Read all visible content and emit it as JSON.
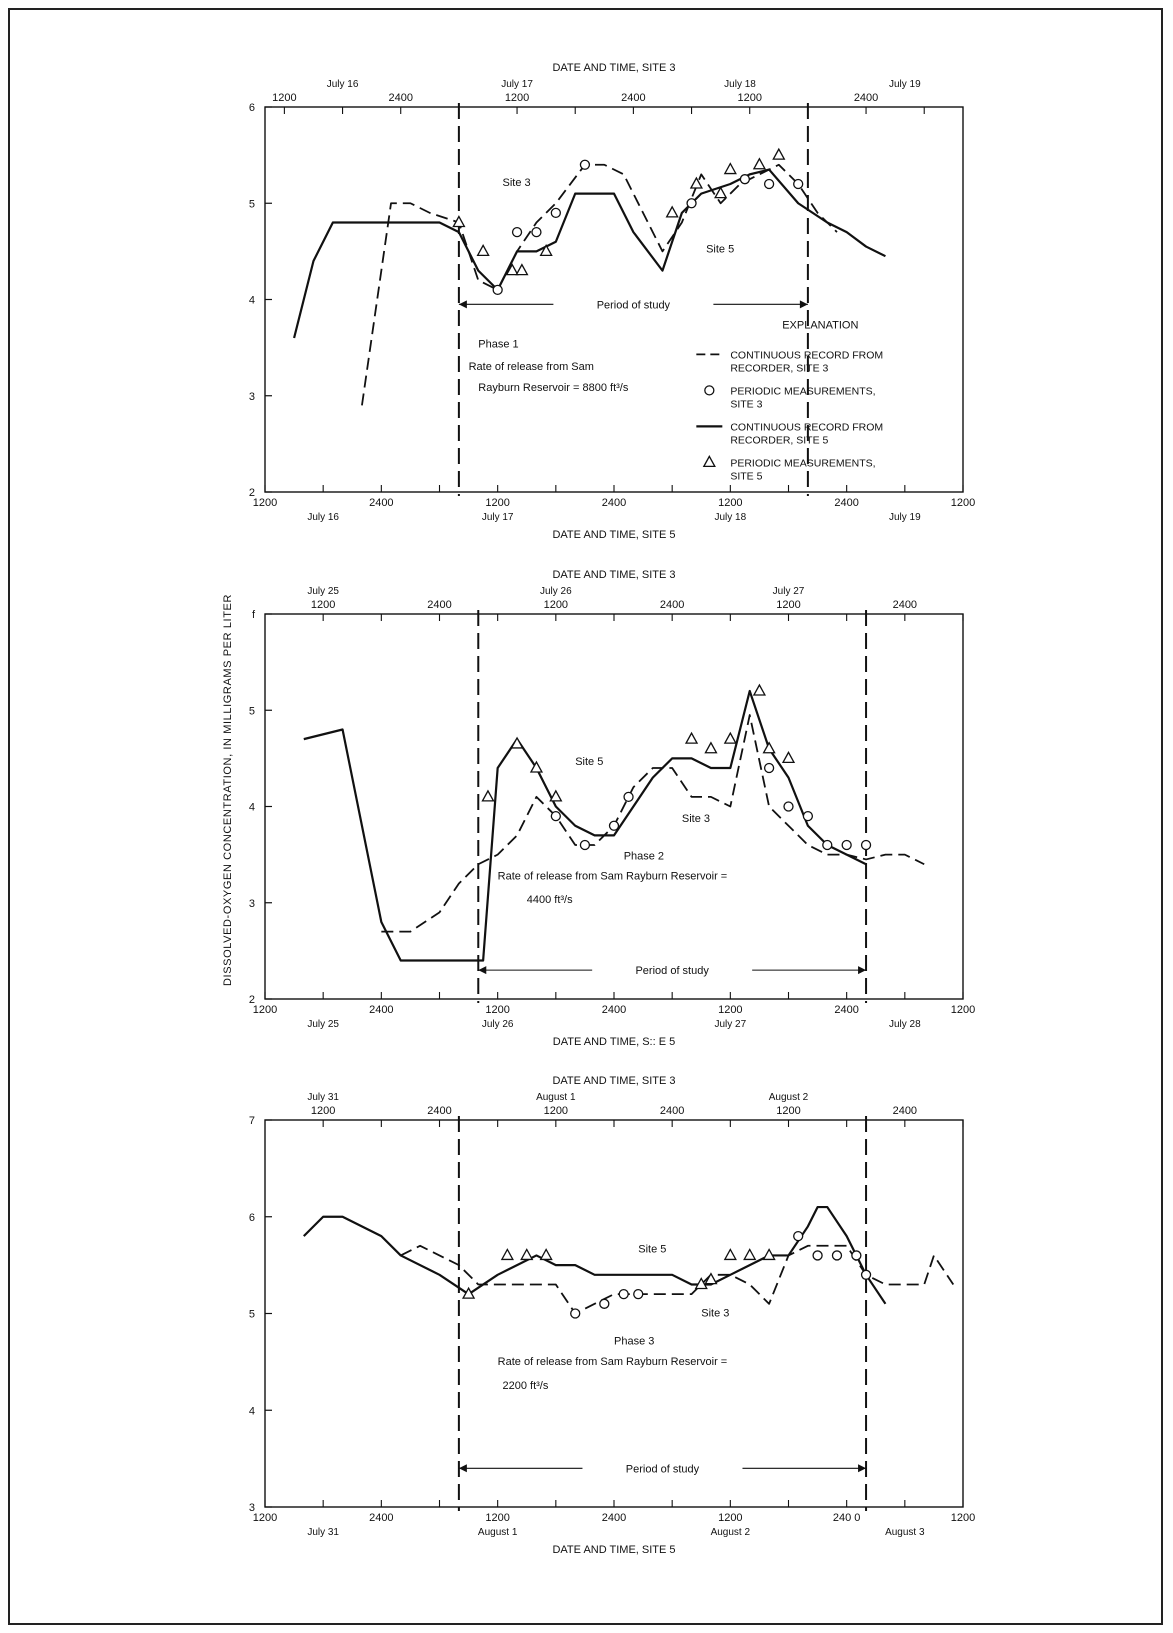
{
  "page": {
    "y_axis_label": "DISSOLVED-OXYGEN CONCENTRATION, IN MILLIGRAMS PER LITER"
  },
  "chart_data": [
    {
      "type": "line",
      "panel": "Phase 1",
      "top_axis_title": "DATE AND TIME, SITE 3",
      "bottom_axis_title": "DATE AND TIME, SITE 5",
      "ylim": [
        2,
        6
      ],
      "yticks": [
        2,
        3,
        4,
        5,
        6
      ],
      "xlim_hours": [
        0,
        72
      ],
      "top_offset_hours": 2,
      "top_ticks": [
        {
          "h": 0,
          "t": "1200"
        },
        {
          "h": 12,
          "t": "2400"
        },
        {
          "h": 24,
          "t": "1200"
        },
        {
          "h": 36,
          "t": "2400"
        },
        {
          "h": 48,
          "t": "1200"
        },
        {
          "h": 60,
          "t": "2400"
        }
      ],
      "top_dates": [
        {
          "h": 6,
          "t": "July 16"
        },
        {
          "h": 24,
          "t": "July 17"
        },
        {
          "h": 47,
          "t": "July 18"
        },
        {
          "h": 64,
          "t": "July 19"
        }
      ],
      "bottom_ticks": [
        {
          "h": 0,
          "t": "1200"
        },
        {
          "h": 12,
          "t": "2400"
        },
        {
          "h": 24,
          "t": "1200"
        },
        {
          "h": 36,
          "t": "2400"
        },
        {
          "h": 48,
          "t": "1200"
        },
        {
          "h": 60,
          "t": "2400"
        },
        {
          "h": 72,
          "t": "1200"
        }
      ],
      "bottom_dates": [
        {
          "h": 6,
          "t": "July 16"
        },
        {
          "h": 24,
          "t": "July 17"
        },
        {
          "h": 48,
          "t": "July 18"
        },
        {
          "h": 66,
          "t": "July 19"
        }
      ],
      "study_period": [
        20,
        56
      ],
      "period_label": "Period of study",
      "annotations": [
        {
          "h": 22,
          "v": 3.5,
          "t": "Phase 1",
          "anchor": "start"
        },
        {
          "h": 21,
          "v": 3.27,
          "t": "Rate of release from Sam",
          "anchor": "start"
        },
        {
          "h": 22,
          "v": 3.05,
          "t": "Rayburn Reservoir = 8800 ft³/s",
          "anchor": "start"
        },
        {
          "h": 24.5,
          "v": 5.18,
          "t": "Site 3",
          "anchor": "start"
        },
        {
          "h": 45.5,
          "v": 4.49,
          "t": "Site 5",
          "anchor": "start"
        }
      ],
      "legend": {
        "title": "EXPLANATION",
        "items": [
          {
            "kind": "dashed",
            "label": "CONTINUOUS RECORD FROM RECORDER, SITE 3"
          },
          {
            "kind": "circle",
            "label": "PERIODIC MEASUREMENTS, SITE 3"
          },
          {
            "kind": "solid",
            "label": "CONTINUOUS RECORD FROM RECORDER, SITE 5"
          },
          {
            "kind": "triangle",
            "label": "PERIODIC MEASUREMENTS, SITE 5"
          }
        ]
      },
      "series": [
        {
          "name": "CONTINUOUS RECORD FROM RECORDER, SITE 3",
          "style": "dashed",
          "x": [
            10,
            13,
            15,
            17,
            20,
            22,
            24,
            25,
            26,
            28,
            30,
            33,
            35,
            37,
            39,
            41,
            43,
            45,
            47,
            49,
            51,
            53,
            55,
            57,
            59
          ],
          "y": [
            2.9,
            5.0,
            5.0,
            4.9,
            4.8,
            4.2,
            4.1,
            4.3,
            4.5,
            4.8,
            5.0,
            5.4,
            5.4,
            5.3,
            4.9,
            4.5,
            4.8,
            5.3,
            5.0,
            5.2,
            5.3,
            5.4,
            5.2,
            4.9,
            4.7
          ]
        },
        {
          "name": "CONTINUOUS RECORD FROM RECORDER, SITE 5",
          "style": "solid",
          "x": [
            3,
            5,
            7,
            10,
            13,
            18,
            20,
            22,
            24,
            26,
            28,
            30,
            32,
            36,
            38,
            41,
            43,
            45,
            48,
            50,
            52,
            55,
            58,
            60,
            62,
            64
          ],
          "y": [
            3.6,
            4.4,
            4.8,
            4.8,
            4.8,
            4.8,
            4.7,
            4.3,
            4.1,
            4.5,
            4.5,
            4.6,
            5.1,
            5.1,
            4.7,
            4.3,
            4.9,
            5.1,
            5.2,
            5.3,
            5.35,
            5.0,
            4.8,
            4.7,
            4.55,
            4.45
          ]
        },
        {
          "name": "PERIODIC MEASUREMENTS, SITE 3",
          "style": "circle",
          "x": [
            24,
            26,
            28,
            30,
            33,
            44,
            49.5,
            52,
            55
          ],
          "y": [
            4.1,
            4.7,
            4.7,
            4.9,
            5.4,
            5.0,
            5.25,
            5.2,
            5.2
          ]
        },
        {
          "name": "PERIODIC MEASUREMENTS, SITE 5",
          "style": "triangle",
          "x": [
            20,
            22.5,
            25.5,
            26.5,
            29,
            42,
            44.5,
            47,
            48,
            51,
            53
          ],
          "y": [
            4.8,
            4.5,
            4.3,
            4.3,
            4.5,
            4.9,
            5.2,
            5.1,
            5.35,
            5.4,
            5.5
          ]
        }
      ]
    },
    {
      "type": "line",
      "panel": "Phase 2",
      "top_axis_title": "DATE AND TIME, SITE 3",
      "bottom_axis_title": "DATE AND TIME, S:: E 5",
      "ylim": [
        2,
        6
      ],
      "yticks": [
        2,
        3,
        4,
        5,
        6
      ],
      "ytick_labels": [
        "2",
        "3",
        "4",
        "5",
        "f"
      ],
      "xlim_hours": [
        0,
        72
      ],
      "top_offset_hours": 6,
      "top_ticks": [
        {
          "h": 0,
          "t": "1200"
        },
        {
          "h": 12,
          "t": "2400"
        },
        {
          "h": 24,
          "t": "1200"
        },
        {
          "h": 36,
          "t": "2400"
        },
        {
          "h": 48,
          "t": "1200"
        },
        {
          "h": 60,
          "t": "2400"
        }
      ],
      "top_dates": [
        {
          "h": 0,
          "t": "July 25"
        },
        {
          "h": 24,
          "t": "July 26"
        },
        {
          "h": 48,
          "t": "July 27"
        }
      ],
      "bottom_ticks": [
        {
          "h": 0,
          "t": "1200"
        },
        {
          "h": 12,
          "t": "2400"
        },
        {
          "h": 24,
          "t": "1200"
        },
        {
          "h": 36,
          "t": "2400"
        },
        {
          "h": 48,
          "t": "1200"
        },
        {
          "h": 60,
          "t": "2400"
        },
        {
          "h": 72,
          "t": "1200"
        }
      ],
      "bottom_dates": [
        {
          "h": 6,
          "t": "July 25"
        },
        {
          "h": 24,
          "t": "July 26"
        },
        {
          "h": 48,
          "t": "July 27"
        },
        {
          "h": 66,
          "t": "July 28"
        }
      ],
      "study_period": [
        22,
        62
      ],
      "period_label": "Period of study",
      "annotations": [
        {
          "h": 37,
          "v": 3.45,
          "t": "Phase 2",
          "anchor": "start"
        },
        {
          "h": 24,
          "v": 3.24,
          "t": "Rate of release from Sam Rayburn Reservoir =",
          "anchor": "start"
        },
        {
          "h": 27,
          "v": 3.0,
          "t": "4400 ft³/s",
          "anchor": "start"
        },
        {
          "h": 32,
          "v": 4.43,
          "t": "Site 5",
          "anchor": "start"
        },
        {
          "h": 43,
          "v": 3.84,
          "t": "Site 3",
          "anchor": "start"
        }
      ],
      "series": [
        {
          "name": "Site 3 (dashed)",
          "style": "dashed",
          "x": [
            12,
            15,
            18,
            20,
            22,
            24,
            26,
            28,
            30,
            32,
            34,
            36,
            38,
            40,
            42,
            44,
            46,
            48,
            50,
            52,
            54,
            56,
            58,
            60,
            62,
            64,
            66,
            68
          ],
          "y": [
            2.7,
            2.7,
            2.9,
            3.2,
            3.4,
            3.5,
            3.7,
            4.1,
            3.9,
            3.6,
            3.6,
            3.8,
            4.2,
            4.4,
            4.4,
            4.1,
            4.1,
            4.0,
            4.95,
            4.0,
            3.8,
            3.6,
            3.5,
            3.5,
            3.45,
            3.5,
            3.5,
            3.4
          ]
        },
        {
          "name": "Site 5 (solid)",
          "style": "solid",
          "x": [
            4,
            8,
            12,
            14,
            18,
            22,
            22.5,
            24,
            26,
            28,
            30,
            32,
            34,
            36,
            38,
            40,
            42,
            44,
            46,
            48,
            50,
            52,
            54,
            56,
            58,
            60,
            62
          ],
          "y": [
            4.7,
            4.8,
            2.8,
            2.4,
            2.4,
            2.4,
            2.4,
            4.4,
            4.7,
            4.4,
            4.0,
            3.8,
            3.7,
            3.7,
            4.0,
            4.3,
            4.5,
            4.5,
            4.4,
            4.4,
            5.2,
            4.6,
            4.3,
            3.8,
            3.6,
            3.5,
            3.4
          ]
        },
        {
          "name": "Site 3 measurements",
          "style": "circle",
          "x": [
            30,
            33,
            36,
            37.5,
            52,
            54,
            56,
            58,
            60,
            62
          ],
          "y": [
            3.9,
            3.6,
            3.8,
            4.1,
            4.4,
            4.0,
            3.9,
            3.6,
            3.6,
            3.6
          ]
        },
        {
          "name": "Site 5 measurements",
          "style": "triangle",
          "x": [
            23,
            26,
            28,
            30,
            44,
            46,
            48,
            51,
            52,
            54
          ],
          "y": [
            4.1,
            4.65,
            4.4,
            4.1,
            4.7,
            4.6,
            4.7,
            5.2,
            4.6,
            4.5
          ]
        }
      ]
    },
    {
      "type": "line",
      "panel": "Phase 3",
      "top_axis_title": "DATE AND TIME, SITE 3",
      "bottom_axis_title": "DATE AND TIME, SITE 5",
      "ylim": [
        3,
        7
      ],
      "yticks": [
        3,
        4,
        5,
        6,
        7
      ],
      "xlim_hours": [
        0,
        72
      ],
      "top_offset_hours": 6,
      "top_ticks": [
        {
          "h": 0,
          "t": "1200"
        },
        {
          "h": 12,
          "t": "2400"
        },
        {
          "h": 24,
          "t": "1200"
        },
        {
          "h": 36,
          "t": "2400"
        },
        {
          "h": 48,
          "t": "1200"
        },
        {
          "h": 60,
          "t": "2400"
        }
      ],
      "top_dates": [
        {
          "h": 0,
          "t": "July 31"
        },
        {
          "h": 24,
          "t": "August 1"
        },
        {
          "h": 48,
          "t": "August 2"
        }
      ],
      "bottom_ticks": [
        {
          "h": 0,
          "t": "1200"
        },
        {
          "h": 12,
          "t": "2400"
        },
        {
          "h": 24,
          "t": "1200"
        },
        {
          "h": 36,
          "t": "2400"
        },
        {
          "h": 48,
          "t": "1200"
        },
        {
          "h": 60,
          "t": "240 0"
        },
        {
          "h": 72,
          "t": "1200"
        }
      ],
      "bottom_dates": [
        {
          "h": 6,
          "t": "July 31"
        },
        {
          "h": 24,
          "t": "August 1"
        },
        {
          "h": 48,
          "t": "August 2"
        },
        {
          "h": 66,
          "t": "August 3"
        }
      ],
      "study_period": [
        20,
        62
      ],
      "period_label": "Period of study",
      "annotations": [
        {
          "h": 36,
          "v": 4.68,
          "t": "Phase 3",
          "anchor": "start"
        },
        {
          "h": 24,
          "v": 4.47,
          "t": "Rate of release from Sam Rayburn Reservoir =",
          "anchor": "start"
        },
        {
          "h": 24.5,
          "v": 4.22,
          "t": "2200 ft³/s",
          "anchor": "start"
        },
        {
          "h": 38.5,
          "v": 5.63,
          "t": "Site 5",
          "anchor": "start"
        },
        {
          "h": 45,
          "v": 4.97,
          "t": "Site 3",
          "anchor": "start"
        }
      ],
      "series": [
        {
          "name": "Site 3 (dashed)",
          "style": "dashed",
          "x": [
            14,
            16,
            20,
            22,
            24,
            26,
            28,
            30,
            32,
            34,
            36,
            38,
            40,
            42,
            44,
            46,
            48,
            50,
            51,
            52,
            54,
            56,
            60,
            62,
            64,
            66,
            68,
            69,
            71
          ],
          "y": [
            5.6,
            5.7,
            5.5,
            5.3,
            5.3,
            5.3,
            5.3,
            5.3,
            5.0,
            5.1,
            5.2,
            5.2,
            5.2,
            5.2,
            5.2,
            5.4,
            5.4,
            5.3,
            5.2,
            5.1,
            5.6,
            5.7,
            5.7,
            5.4,
            5.3,
            5.3,
            5.3,
            5.6,
            5.3
          ]
        },
        {
          "name": "Site 5 (solid)",
          "style": "solid",
          "x": [
            4,
            6,
            8,
            12,
            14,
            18,
            21,
            24,
            26,
            28,
            30,
            32,
            34,
            36,
            38,
            40,
            42,
            44,
            46,
            48,
            50,
            52,
            54,
            56,
            57,
            58,
            60,
            62,
            64
          ],
          "y": [
            5.8,
            6.0,
            6.0,
            5.8,
            5.6,
            5.4,
            5.2,
            5.4,
            5.5,
            5.6,
            5.5,
            5.5,
            5.4,
            5.4,
            5.4,
            5.4,
            5.4,
            5.3,
            5.3,
            5.4,
            5.5,
            5.6,
            5.6,
            5.9,
            6.1,
            6.1,
            5.8,
            5.4,
            5.1
          ]
        },
        {
          "name": "Site 3 measurements",
          "style": "circle",
          "x": [
            32,
            35,
            37,
            38.5,
            55,
            57,
            59,
            61,
            62
          ],
          "y": [
            5.0,
            5.1,
            5.2,
            5.2,
            5.8,
            5.6,
            5.6,
            5.6,
            5.4
          ]
        },
        {
          "name": "Site 5 measurements",
          "style": "triangle",
          "x": [
            21,
            25,
            27,
            29,
            45,
            46,
            48,
            50,
            52
          ],
          "y": [
            5.2,
            5.6,
            5.6,
            5.6,
            5.3,
            5.35,
            5.6,
            5.6,
            5.6
          ]
        }
      ]
    }
  ]
}
